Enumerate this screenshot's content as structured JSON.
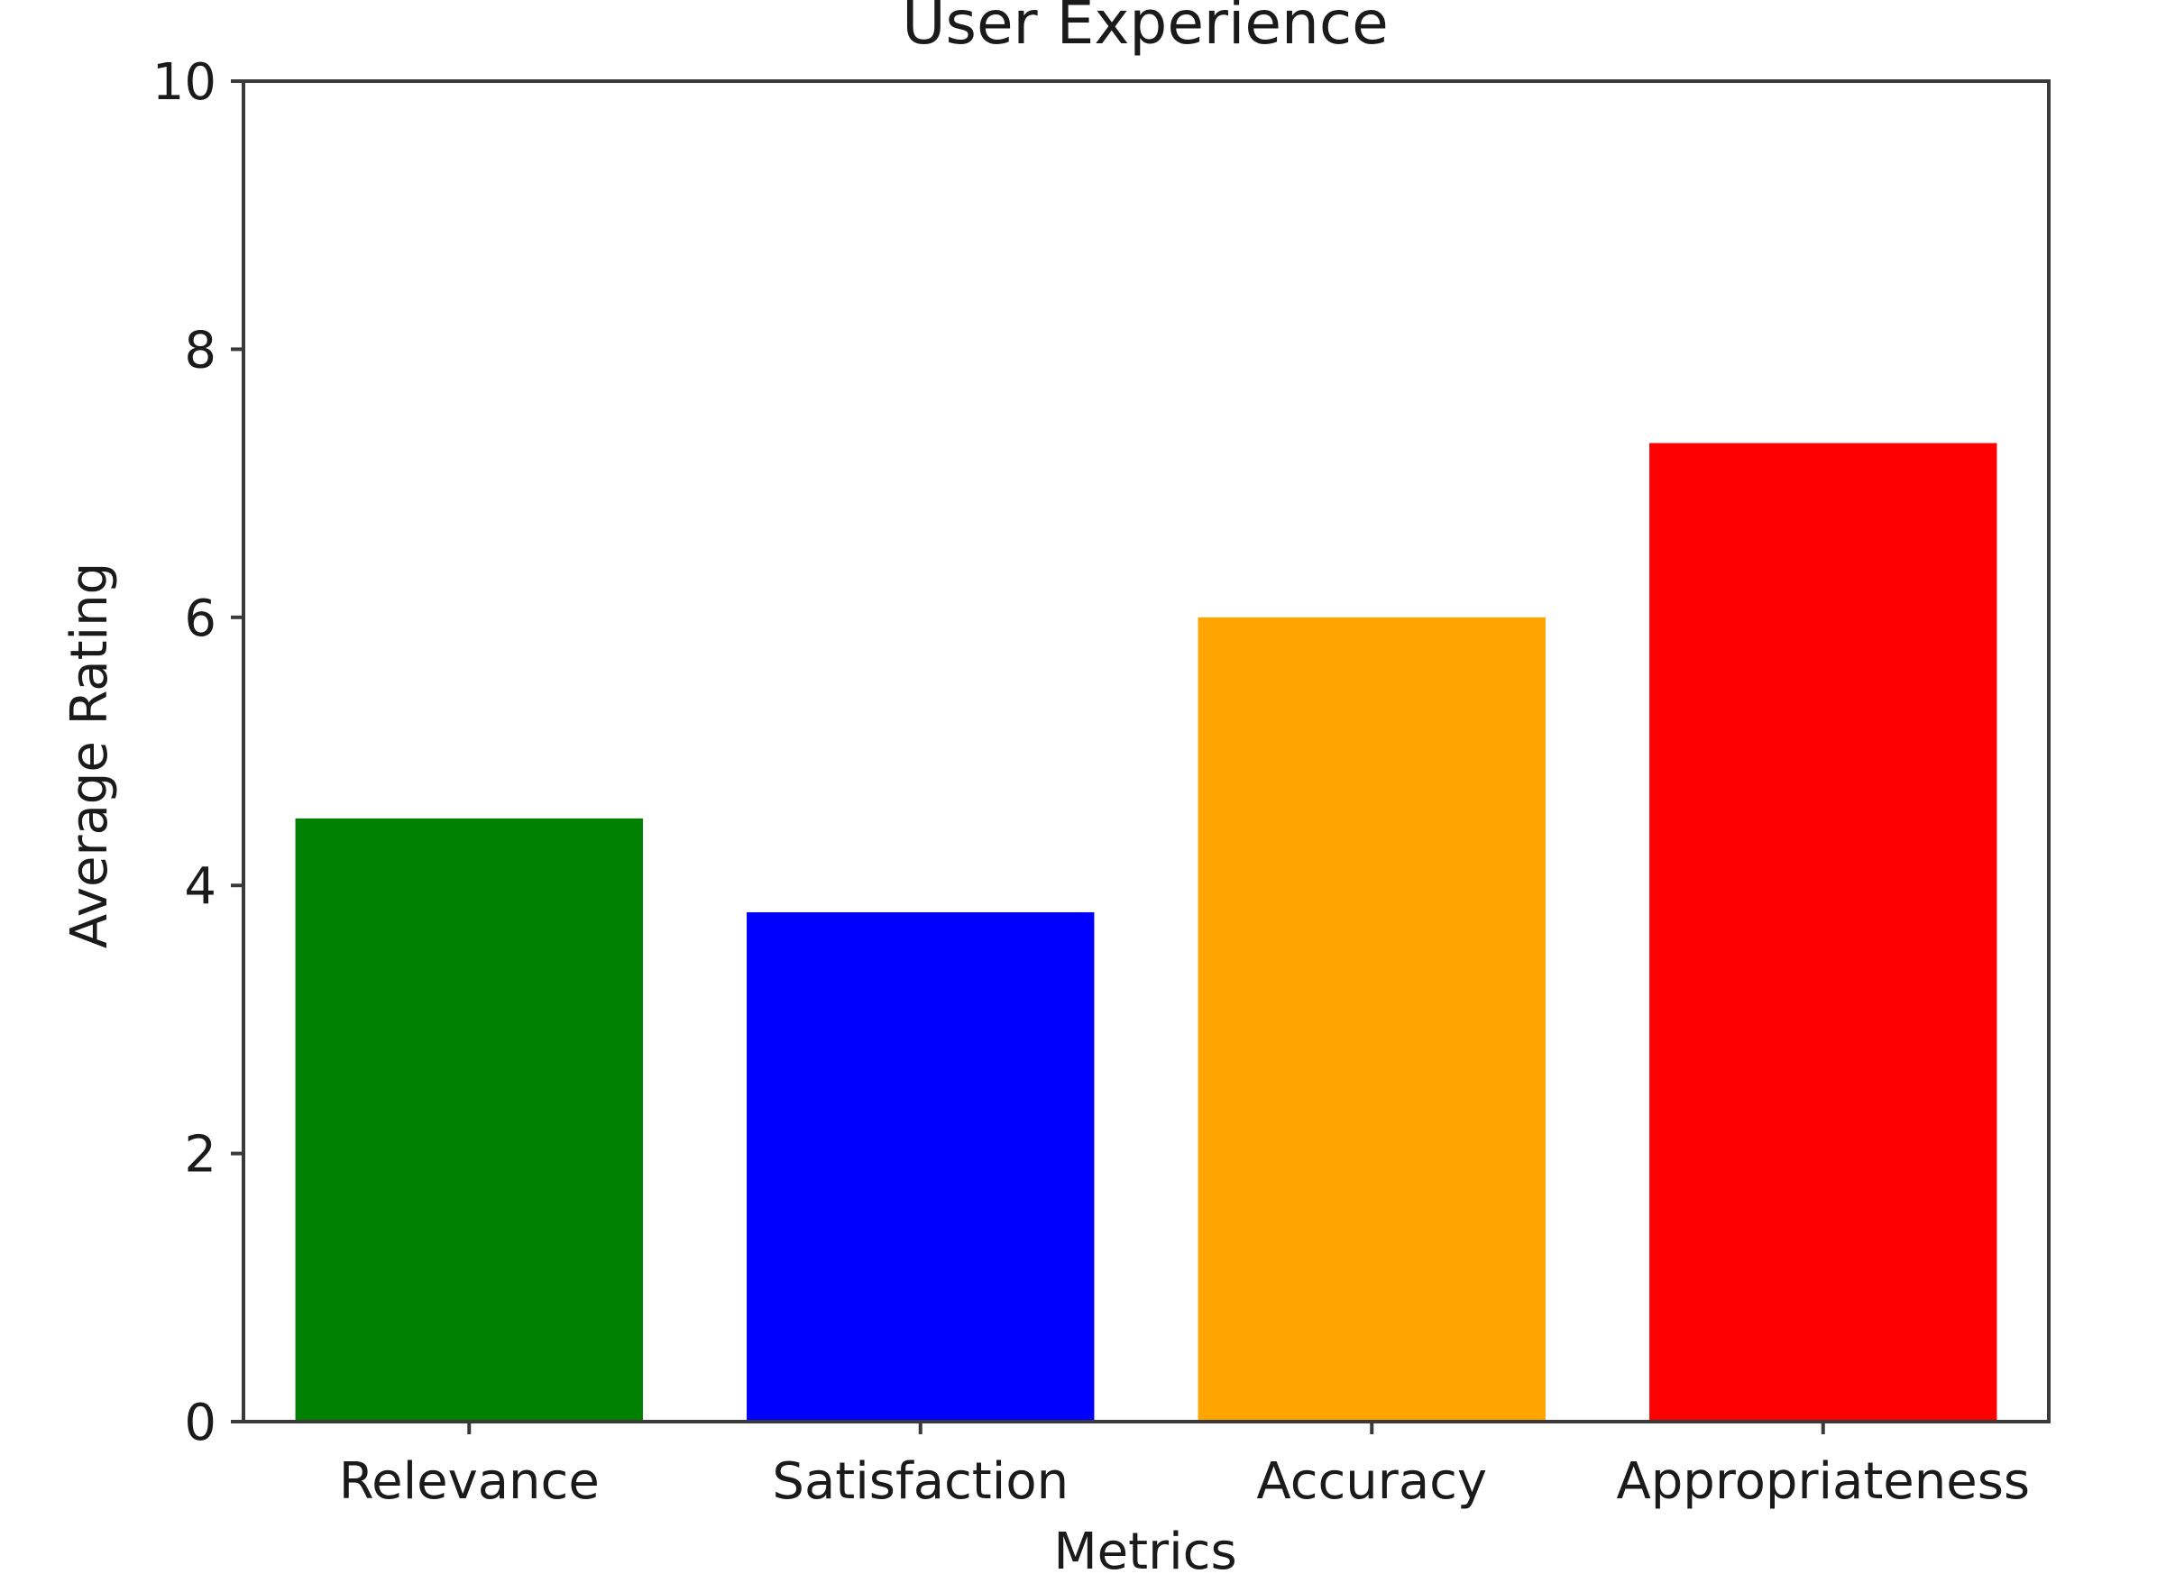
{
  "chart_data": {
    "type": "bar",
    "title": "User Experience",
    "xlabel": "Metrics",
    "ylabel": "Average Rating",
    "categories": [
      "Relevance",
      "Satisfaction",
      "Accuracy",
      "Appropriateness"
    ],
    "values": [
      4.5,
      3.8,
      6.0,
      7.3
    ],
    "colors": [
      "#008000",
      "#0000ff",
      "#ffa500",
      "#ff0000"
    ],
    "ylim": [
      0,
      10
    ],
    "yticks": [
      0,
      2,
      4,
      6,
      8,
      10
    ],
    "grid": false,
    "legend": "none"
  }
}
